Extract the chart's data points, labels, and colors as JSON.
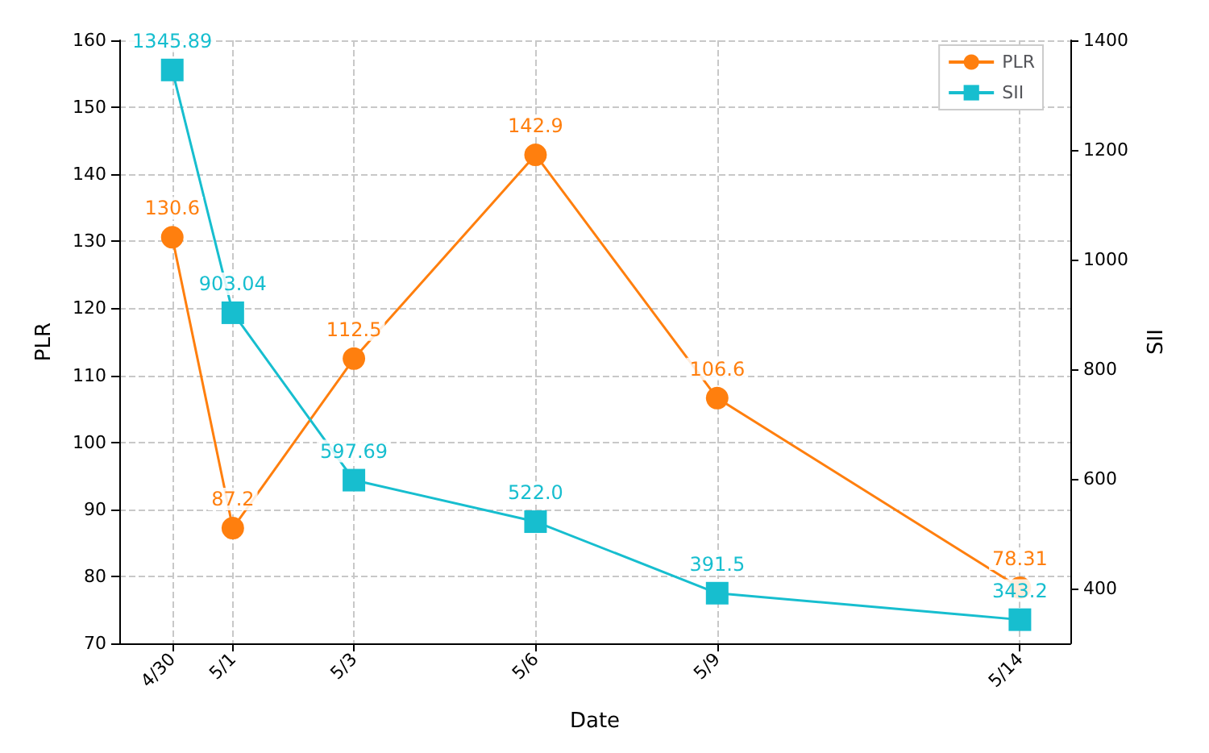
{
  "chart_data": {
    "type": "line",
    "xlabel": "Date",
    "ylabel": "PLR",
    "y2label": "SII",
    "x": [
      "--04-30",
      "--05-01",
      "--05-03",
      "--05-06",
      "--05-09",
      "--05-14"
    ],
    "xticks": [
      {
        "value": "--04-30",
        "label": "4/30"
      },
      {
        "value": "--05-01",
        "label": "5/1"
      },
      {
        "value": "--05-03",
        "label": "5/3"
      },
      {
        "value": "--05-06",
        "label": "5/6"
      },
      {
        "value": "--05-09",
        "label": "5/9"
      },
      {
        "value": "--05-14",
        "label": "5/14"
      }
    ],
    "series": [
      {
        "name": "PLR",
        "color": "#ff7f0e",
        "marker": "circle",
        "values": [
          130.6,
          87.2,
          112.5,
          142.9,
          106.6,
          78.31
        ],
        "value_labels": [
          "130.6",
          "87.2",
          "112.5",
          "142.9",
          "106.6",
          "78.31"
        ]
      },
      {
        "name": "SII",
        "color": "#17becf",
        "marker": "square",
        "axis": "y2",
        "values": [
          1345.89,
          903.04,
          597.69,
          522.0,
          391.5,
          343.2
        ],
        "value_labels": [
          "1345.89",
          "903.04",
          "597.69",
          "522.0",
          "391.5",
          "343.2"
        ]
      }
    ],
    "ylim": [
      70,
      160
    ],
    "yticks": [
      70,
      80,
      90,
      100,
      110,
      120,
      130,
      140,
      150,
      160
    ],
    "y2lim": [
      300,
      1400
    ],
    "y2ticks": [
      400,
      600,
      800,
      1000,
      1200,
      1400
    ],
    "xlim": [
      "--04-29T03:00",
      "--05-14T20:00"
    ],
    "grid": true,
    "legend": "top right",
    "line_style": "solid"
  }
}
